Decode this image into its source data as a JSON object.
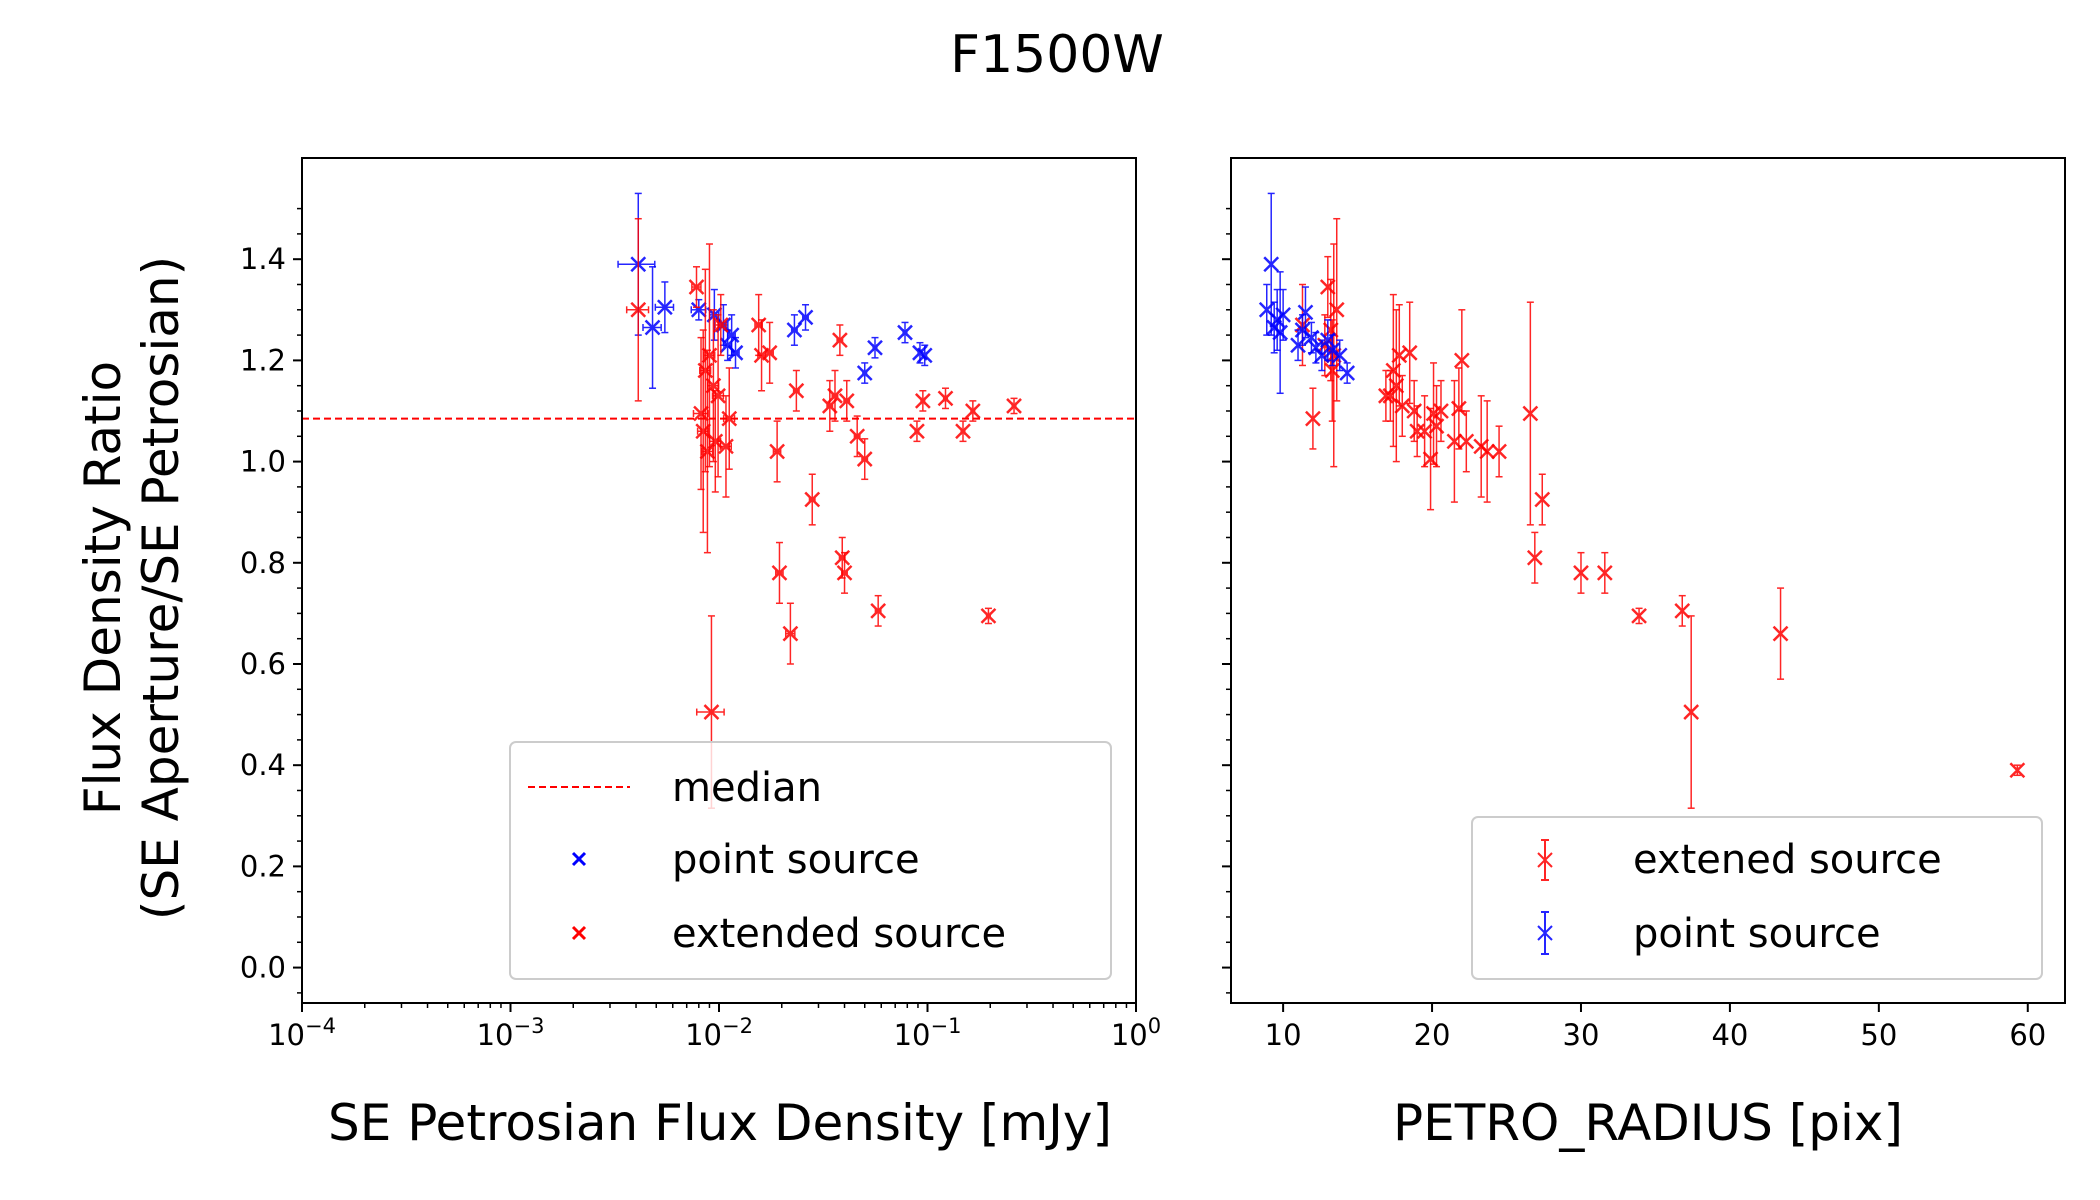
{
  "chart_data": {
    "title": "F1500W",
    "ylabel_line1": "Flux Density Ratio",
    "ylabel_line2": "(SE Aperture/SE Petrosian)",
    "panels": [
      {
        "type": "scatter",
        "xlabel": "SE Petrosian Flux Density [mJy]",
        "xscale": "log",
        "xlim": [
          0.0001,
          1
        ],
        "ylim": [
          -0.07,
          1.6
        ],
        "grid": false,
        "legend_position": "lower-right",
        "xticks": [
          {
            "value": 0.0001,
            "base": "10",
            "exp": "−4"
          },
          {
            "value": 0.001,
            "base": "10",
            "exp": "−3"
          },
          {
            "value": 0.01,
            "base": "10",
            "exp": "−2"
          },
          {
            "value": 0.1,
            "base": "10",
            "exp": "−1"
          },
          {
            "value": 1,
            "base": "10",
            "exp": "0"
          }
        ],
        "yticks": [
          {
            "value": 0.0,
            "label": "0.0"
          },
          {
            "value": 0.2,
            "label": "0.2"
          },
          {
            "value": 0.4,
            "label": "0.4"
          },
          {
            "value": 0.6,
            "label": "0.6"
          },
          {
            "value": 0.8,
            "label": "0.8"
          },
          {
            "value": 1.0,
            "label": "1.0"
          },
          {
            "value": 1.2,
            "label": "1.2"
          },
          {
            "value": 1.4,
            "label": "1.4"
          }
        ],
        "median": {
          "name": "median",
          "value": 1.085,
          "color": "#ff0000"
        },
        "series": [
          {
            "name": "point source",
            "color": "#0000ff",
            "points": [
              {
                "x": 0.0041,
                "y": 1.39,
                "yerr": 0.14,
                "xerr": 0.2
              },
              {
                "x": 0.0048,
                "y": 1.265,
                "yerr": 0.12,
                "xerr": 0.1
              },
              {
                "x": 0.0055,
                "y": 1.305,
                "yerr": 0.05,
                "xerr": 0.1
              },
              {
                "x": 0.008,
                "y": 1.3,
                "yerr": 0.02,
                "xerr": 0.08
              },
              {
                "x": 0.0095,
                "y": 1.29,
                "yerr": 0.05,
                "xerr": 0.05
              },
              {
                "x": 0.0105,
                "y": 1.27,
                "yerr": 0.04,
                "xerr": 0.05
              },
              {
                "x": 0.011,
                "y": 1.23,
                "yerr": 0.03,
                "xerr": 0.04
              },
              {
                "x": 0.0115,
                "y": 1.25,
                "yerr": 0.04,
                "xerr": 0.04
              },
              {
                "x": 0.012,
                "y": 1.215,
                "yerr": 0.03,
                "xerr": 0.04
              },
              {
                "x": 0.023,
                "y": 1.26,
                "yerr": 0.03,
                "xerr": 0.03
              },
              {
                "x": 0.026,
                "y": 1.285,
                "yerr": 0.025,
                "xerr": 0.03
              },
              {
                "x": 0.05,
                "y": 1.175,
                "yerr": 0.02,
                "xerr": 0.02
              },
              {
                "x": 0.056,
                "y": 1.225,
                "yerr": 0.02,
                "xerr": 0.02
              },
              {
                "x": 0.078,
                "y": 1.255,
                "yerr": 0.02,
                "xerr": 0.02
              },
              {
                "x": 0.092,
                "y": 1.215,
                "yerr": 0.02,
                "xerr": 0.02
              },
              {
                "x": 0.097,
                "y": 1.21,
                "yerr": 0.02,
                "xerr": 0.02
              }
            ]
          },
          {
            "name": "extended source",
            "color": "#ff0000",
            "points": [
              {
                "x": 0.0041,
                "y": 1.3,
                "yerr": 0.18,
                "xerr": 0.12
              },
              {
                "x": 0.0078,
                "y": 1.345,
                "yerr": 0.04,
                "xerr": 0.05
              },
              {
                "x": 0.0082,
                "y": 1.095,
                "yerr": 0.15,
                "xerr": 0.08
              },
              {
                "x": 0.0084,
                "y": 1.06,
                "yerr": 0.2,
                "xerr": 0.06
              },
              {
                "x": 0.0086,
                "y": 1.18,
                "yerr": 0.2,
                "xerr": 0.06
              },
              {
                "x": 0.0088,
                "y": 1.02,
                "yerr": 0.2,
                "xerr": 0.06
              },
              {
                "x": 0.009,
                "y": 1.21,
                "yerr": 0.22,
                "xerr": 0.06
              },
              {
                "x": 0.0092,
                "y": 0.505,
                "yerr": 0.19,
                "xerr": 0.15
              },
              {
                "x": 0.0094,
                "y": 1.15,
                "yerr": 0.15,
                "xerr": 0.06
              },
              {
                "x": 0.0096,
                "y": 1.04,
                "yerr": 0.1,
                "xerr": 0.06
              },
              {
                "x": 0.0099,
                "y": 1.13,
                "yerr": 0.16,
                "xerr": 0.06
              },
              {
                "x": 0.0102,
                "y": 1.27,
                "yerr": 0.06,
                "xerr": 0.06
              },
              {
                "x": 0.0108,
                "y": 1.03,
                "yerr": 0.1,
                "xerr": 0.06
              },
              {
                "x": 0.0112,
                "y": 1.085,
                "yerr": 0.1,
                "xerr": 0.06
              },
              {
                "x": 0.0155,
                "y": 1.27,
                "yerr": 0.06,
                "xerr": 0.04
              },
              {
                "x": 0.016,
                "y": 1.21,
                "yerr": 0.07,
                "xerr": 0.04
              },
              {
                "x": 0.0175,
                "y": 1.215,
                "yerr": 0.06,
                "xerr": 0.04
              },
              {
                "x": 0.019,
                "y": 1.02,
                "yerr": 0.06,
                "xerr": 0.04
              },
              {
                "x": 0.0195,
                "y": 0.78,
                "yerr": 0.06,
                "xerr": 0.04
              },
              {
                "x": 0.022,
                "y": 0.66,
                "yerr": 0.06,
                "xerr": 0.05
              },
              {
                "x": 0.0235,
                "y": 1.14,
                "yerr": 0.04,
                "xerr": 0.03
              },
              {
                "x": 0.028,
                "y": 0.925,
                "yerr": 0.05,
                "xerr": 0.03
              },
              {
                "x": 0.034,
                "y": 1.11,
                "yerr": 0.05,
                "xerr": 0.03
              },
              {
                "x": 0.036,
                "y": 1.13,
                "yerr": 0.05,
                "xerr": 0.03
              },
              {
                "x": 0.038,
                "y": 1.24,
                "yerr": 0.03,
                "xerr": 0.03
              },
              {
                "x": 0.039,
                "y": 0.81,
                "yerr": 0.04,
                "xerr": 0.03
              },
              {
                "x": 0.04,
                "y": 0.78,
                "yerr": 0.04,
                "xerr": 0.03
              },
              {
                "x": 0.041,
                "y": 1.12,
                "yerr": 0.04,
                "xerr": 0.03
              },
              {
                "x": 0.046,
                "y": 1.05,
                "yerr": 0.04,
                "xerr": 0.03
              },
              {
                "x": 0.05,
                "y": 1.005,
                "yerr": 0.04,
                "xerr": 0.03
              },
              {
                "x": 0.058,
                "y": 0.705,
                "yerr": 0.03,
                "xerr": 0.03
              },
              {
                "x": 0.089,
                "y": 1.06,
                "yerr": 0.02,
                "xerr": 0.02
              },
              {
                "x": 0.095,
                "y": 1.12,
                "yerr": 0.02,
                "xerr": 0.02
              },
              {
                "x": 0.122,
                "y": 1.125,
                "yerr": 0.02,
                "xerr": 0.02
              },
              {
                "x": 0.148,
                "y": 1.06,
                "yerr": 0.02,
                "xerr": 0.02
              },
              {
                "x": 0.165,
                "y": 1.1,
                "yerr": 0.02,
                "xerr": 0.02
              },
              {
                "x": 0.196,
                "y": 0.695,
                "yerr": 0.015,
                "xerr": 0.02
              },
              {
                "x": 0.26,
                "y": 1.11,
                "yerr": 0.015,
                "xerr": 0.02
              }
            ]
          }
        ],
        "legend": [
          "median",
          "point source",
          "extended source"
        ]
      },
      {
        "type": "scatter",
        "xlabel": "PETRO_RADIUS [pix]",
        "xscale": "linear",
        "xlim": [
          6.5,
          62.5
        ],
        "ylim": [
          -0.07,
          1.6
        ],
        "grid": false,
        "legend_position": "lower-right",
        "xticks": [
          {
            "value": 10,
            "label": "10"
          },
          {
            "value": 20,
            "label": "20"
          },
          {
            "value": 30,
            "label": "30"
          },
          {
            "value": 40,
            "label": "40"
          },
          {
            "value": 50,
            "label": "50"
          },
          {
            "value": 60,
            "label": "60"
          }
        ],
        "series": [
          {
            "name": "extened source",
            "color": "#ff0000",
            "points": [
              {
                "x": 11.3,
                "y": 1.27,
                "yerr": 0.08
              },
              {
                "x": 12.0,
                "y": 1.085,
                "yerr": 0.06
              },
              {
                "x": 12.8,
                "y": 1.23,
                "yerr": 0.06
              },
              {
                "x": 13.0,
                "y": 1.345,
                "yerr": 0.06
              },
              {
                "x": 13.2,
                "y": 1.26,
                "yerr": 0.1
              },
              {
                "x": 13.3,
                "y": 1.18,
                "yerr": 0.1
              },
              {
                "x": 13.4,
                "y": 1.21,
                "yerr": 0.22
              },
              {
                "x": 13.6,
                "y": 1.3,
                "yerr": 0.18
              },
              {
                "x": 16.9,
                "y": 1.13,
                "yerr": 0.05
              },
              {
                "x": 17.2,
                "y": 1.13,
                "yerr": 0.05
              },
              {
                "x": 17.4,
                "y": 1.18,
                "yerr": 0.15
              },
              {
                "x": 17.6,
                "y": 1.15,
                "yerr": 0.15
              },
              {
                "x": 17.8,
                "y": 1.21,
                "yerr": 0.1
              },
              {
                "x": 18.0,
                "y": 1.11,
                "yerr": 0.06
              },
              {
                "x": 18.5,
                "y": 1.215,
                "yerr": 0.1
              },
              {
                "x": 18.8,
                "y": 1.1,
                "yerr": 0.06
              },
              {
                "x": 19.0,
                "y": 1.06,
                "yerr": 0.05
              },
              {
                "x": 19.5,
                "y": 1.06,
                "yerr": 0.07
              },
              {
                "x": 19.9,
                "y": 1.005,
                "yerr": 0.1
              },
              {
                "x": 20.1,
                "y": 1.095,
                "yerr": 0.1
              },
              {
                "x": 20.3,
                "y": 1.07,
                "yerr": 0.08
              },
              {
                "x": 20.6,
                "y": 1.1,
                "yerr": 0.06
              },
              {
                "x": 21.5,
                "y": 1.04,
                "yerr": 0.12
              },
              {
                "x": 21.8,
                "y": 1.105,
                "yerr": 0.08
              },
              {
                "x": 22.0,
                "y": 1.2,
                "yerr": 0.1
              },
              {
                "x": 22.3,
                "y": 1.04,
                "yerr": 0.06
              },
              {
                "x": 23.3,
                "y": 1.03,
                "yerr": 0.1
              },
              {
                "x": 23.7,
                "y": 1.02,
                "yerr": 0.1
              },
              {
                "x": 24.5,
                "y": 1.02,
                "yerr": 0.05
              },
              {
                "x": 26.6,
                "y": 1.095,
                "yerr": 0.22
              },
              {
                "x": 26.9,
                "y": 0.81,
                "yerr": 0.05
              },
              {
                "x": 27.4,
                "y": 0.925,
                "yerr": 0.05
              },
              {
                "x": 30.0,
                "y": 0.78,
                "yerr": 0.04
              },
              {
                "x": 31.6,
                "y": 0.78,
                "yerr": 0.04
              },
              {
                "x": 33.9,
                "y": 0.695,
                "yerr": 0.015
              },
              {
                "x": 36.8,
                "y": 0.705,
                "yerr": 0.03
              },
              {
                "x": 37.4,
                "y": 0.505,
                "yerr": 0.19
              },
              {
                "x": 43.4,
                "y": 0.66,
                "yerr": 0.09
              },
              {
                "x": 59.3,
                "y": 0.39,
                "yerr": 0.01
              }
            ]
          },
          {
            "name": "point source",
            "color": "#0000ff",
            "points": [
              {
                "x": 8.9,
                "y": 1.3,
                "yerr": 0.05
              },
              {
                "x": 9.2,
                "y": 1.39,
                "yerr": 0.14
              },
              {
                "x": 9.4,
                "y": 1.265,
                "yerr": 0.05
              },
              {
                "x": 9.6,
                "y": 1.28,
                "yerr": 0.06
              },
              {
                "x": 9.8,
                "y": 1.255,
                "yerr": 0.12
              },
              {
                "x": 10.0,
                "y": 1.29,
                "yerr": 0.05
              },
              {
                "x": 11.0,
                "y": 1.23,
                "yerr": 0.03
              },
              {
                "x": 11.3,
                "y": 1.26,
                "yerr": 0.03
              },
              {
                "x": 11.5,
                "y": 1.295,
                "yerr": 0.05
              },
              {
                "x": 11.9,
                "y": 1.245,
                "yerr": 0.03
              },
              {
                "x": 12.2,
                "y": 1.225,
                "yerr": 0.03
              },
              {
                "x": 12.6,
                "y": 1.21,
                "yerr": 0.03
              },
              {
                "x": 13.0,
                "y": 1.24,
                "yerr": 0.04
              },
              {
                "x": 13.3,
                "y": 1.22,
                "yerr": 0.03
              },
              {
                "x": 13.8,
                "y": 1.21,
                "yerr": 0.03
              },
              {
                "x": 14.3,
                "y": 1.175,
                "yerr": 0.02
              }
            ]
          }
        ],
        "legend": [
          "extened source",
          "point source"
        ]
      }
    ]
  }
}
